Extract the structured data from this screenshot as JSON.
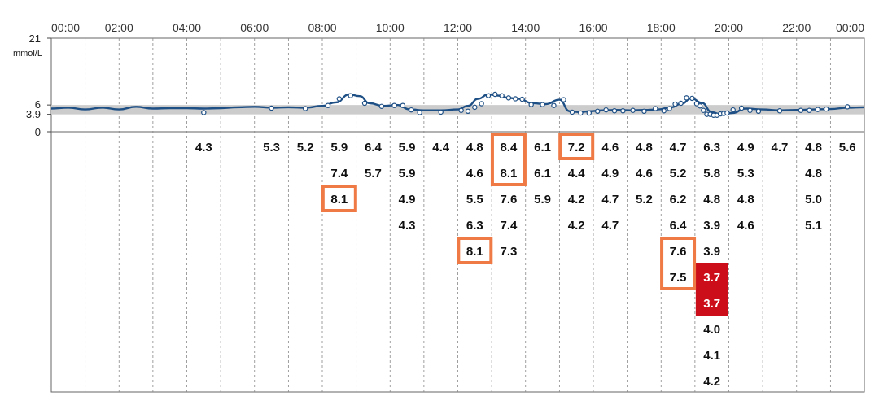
{
  "chart_data": {
    "type": "line",
    "time_labels": [
      "00:00",
      "02:00",
      "04:00",
      "06:00",
      "08:00",
      "10:00",
      "12:00",
      "14:00",
      "16:00",
      "18:00",
      "20:00",
      "22:00",
      "00:00"
    ],
    "y_axis": {
      "ticks": [
        "21",
        "6",
        "3.9",
        "0"
      ],
      "tick_values": [
        21,
        6,
        3.9,
        0
      ],
      "unit": "mmol/L",
      "ylim": [
        0,
        21
      ]
    },
    "target_range": [
      3.9,
      6
    ],
    "grid": true,
    "colors": {
      "line": "#1e4f85",
      "band": "#cccccc",
      "highlight_box": "#ef7a45",
      "low_cell": "#cc0e1a",
      "grid": "#888888"
    },
    "series": [
      {
        "x": [
          0,
          0.5,
          1,
          1.5,
          2,
          2.5,
          3,
          3.5,
          4,
          4.5,
          5,
          5.5,
          6,
          6.5,
          7,
          7.5,
          8,
          8.4,
          8.8,
          9.1,
          9.4,
          9.8,
          10.2,
          10.6,
          11,
          11.5,
          12,
          12.3,
          12.6,
          12.9,
          13.2,
          13.5,
          13.8,
          14.2,
          14.6,
          15,
          15.3,
          15.6,
          15.9,
          16.3,
          16.7,
          17.1,
          17.5,
          17.9,
          18.3,
          18.6,
          18.9,
          19.2,
          19.5,
          19.8,
          20.1,
          20.5,
          21,
          21.5,
          22,
          22.5,
          23,
          23.5,
          24
        ],
        "y": [
          5.2,
          5.4,
          5.0,
          5.4,
          5.0,
          5.6,
          5.2,
          5.3,
          5.3,
          5.2,
          5.3,
          5.5,
          5.6,
          5.4,
          5.5,
          5.4,
          5.8,
          6.6,
          8.4,
          8.0,
          6.4,
          5.8,
          6.0,
          5.0,
          4.8,
          4.8,
          5.0,
          5.8,
          7.4,
          8.4,
          8.1,
          7.6,
          7.4,
          6.4,
          6.2,
          7.2,
          4.6,
          4.4,
          4.6,
          4.8,
          4.9,
          4.8,
          4.9,
          5.0,
          5.5,
          6.3,
          7.5,
          6.5,
          4.4,
          3.8,
          4.2,
          5.2,
          5.0,
          4.8,
          4.9,
          5.0,
          5.1,
          5.4,
          5.5
        ]
      }
    ],
    "readings_table": [
      {
        "hour": "04",
        "values": [
          "4.3"
        ]
      },
      {
        "hour": "06",
        "values": [
          "5.3"
        ]
      },
      {
        "hour": "07",
        "values": [
          "5.2"
        ]
      },
      {
        "hour": "08",
        "values": [
          "5.9",
          "7.4",
          "8.1"
        ]
      },
      {
        "hour": "09",
        "values": [
          "6.4",
          "5.7"
        ]
      },
      {
        "hour": "10",
        "values": [
          "5.9",
          "5.9",
          "4.9",
          "4.3"
        ]
      },
      {
        "hour": "11",
        "values": [
          "4.4"
        ]
      },
      {
        "hour": "12",
        "values": [
          "4.8",
          "4.6",
          "5.5",
          "6.3",
          "8.1"
        ]
      },
      {
        "hour": "13",
        "values": [
          "8.4",
          "8.1",
          "7.6",
          "7.4",
          "7.3"
        ]
      },
      {
        "hour": "14",
        "values": [
          "6.1",
          "6.1",
          "5.9"
        ]
      },
      {
        "hour": "15",
        "values": [
          "7.2",
          "4.4",
          "4.2",
          "4.2"
        ]
      },
      {
        "hour": "16",
        "values": [
          "4.6",
          "4.9",
          "4.7",
          "4.7"
        ]
      },
      {
        "hour": "17",
        "values": [
          "4.8",
          "4.6",
          "5.2"
        ]
      },
      {
        "hour": "18",
        "values": [
          "4.7",
          "5.2",
          "6.2",
          "6.4",
          "7.6",
          "7.5"
        ]
      },
      {
        "hour": "19",
        "values": [
          "6.3",
          "5.8",
          "4.8",
          "3.9",
          "3.9",
          "3.7",
          "3.7",
          "4.0",
          "4.1",
          "4.2"
        ]
      },
      {
        "hour": "20",
        "values": [
          "4.9",
          "5.3",
          "4.8",
          "4.6"
        ]
      },
      {
        "hour": "21",
        "values": [
          "4.7"
        ]
      },
      {
        "hour": "22",
        "values": [
          "4.8",
          "4.8",
          "5.0",
          "5.1"
        ]
      },
      {
        "hour": "23",
        "values": [
          "5.6"
        ]
      }
    ],
    "highlighted_cells": [
      [
        "08",
        2
      ],
      [
        "12",
        4
      ],
      [
        "13",
        0
      ],
      [
        "13",
        1
      ],
      [
        "15",
        0
      ],
      [
        "18",
        4
      ],
      [
        "18",
        5
      ]
    ],
    "low_cells": [
      [
        "19",
        5
      ],
      [
        "19",
        6
      ]
    ]
  }
}
